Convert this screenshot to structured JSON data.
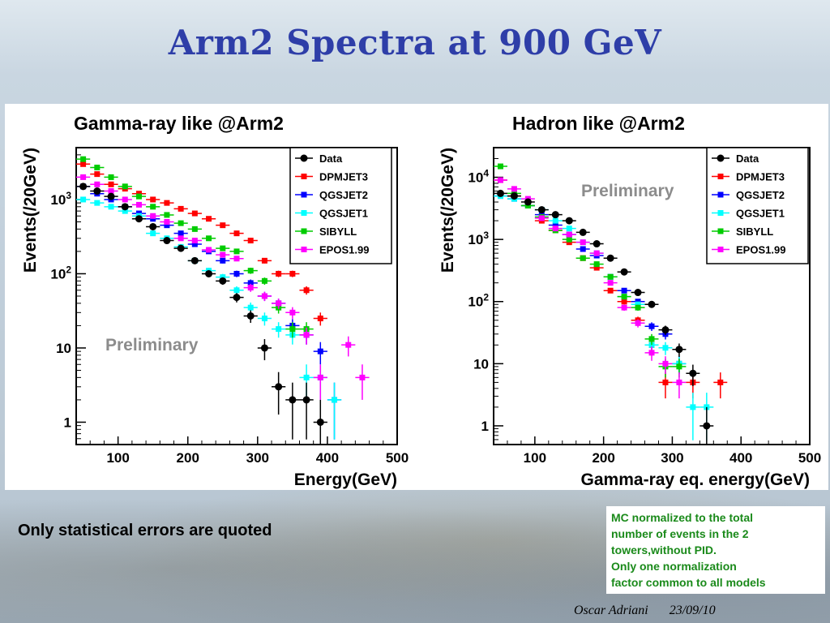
{
  "slide": {
    "title": "Arm2 Spectra at 900 GeV",
    "note_left": "Only statistical errors are quoted",
    "note_right": [
      "MC normalized to the total",
      "number of events in the 2",
      "towers,without PID.",
      "Only one normalization",
      "factor common to all models"
    ],
    "footer_author": "Oscar Adriani",
    "footer_date": "23/09/10"
  },
  "colors": {
    "title": "#2e3ea8",
    "Data": "#000000",
    "DPMJET3": "#ff0000",
    "QGSJET2": "#0000ff",
    "QGSJET1": "#00ffff",
    "SIBYLL": "#00cc00",
    "EPOS1.99": "#ff00ff",
    "note_right_text": "#1a8a1a"
  },
  "chart_data": [
    {
      "type": "scatter",
      "title": "Gamma-ray like @Arm2",
      "xlabel": "Energy(GeV)",
      "ylabel": "Events(/20GeV)",
      "xlim": [
        40,
        500
      ],
      "ylim": [
        0.5,
        5000
      ],
      "yscale": "log",
      "xticks": [
        "100",
        "200",
        "300",
        "400",
        "500"
      ],
      "yticks": [
        {
          "v": 1,
          "label": "1"
        },
        {
          "v": 10,
          "label": "10"
        },
        {
          "v": 100,
          "label": "10^2"
        },
        {
          "v": 1000,
          "label": "10^3"
        }
      ],
      "annotation": "Preliminary",
      "legend_position": "top-right",
      "series": [
        {
          "name": "Data",
          "x": [
            50,
            70,
            90,
            110,
            130,
            150,
            170,
            190,
            210,
            230,
            250,
            270,
            290,
            310,
            330,
            350,
            370,
            390
          ],
          "y": [
            1500,
            1300,
            1100,
            800,
            550,
            430,
            280,
            220,
            150,
            100,
            80,
            48,
            27,
            10,
            3,
            2,
            2,
            1
          ]
        },
        {
          "name": "DPMJET3",
          "x": [
            50,
            70,
            90,
            110,
            130,
            150,
            170,
            190,
            210,
            230,
            250,
            270,
            290,
            310,
            330,
            350,
            370,
            390
          ],
          "y": [
            3000,
            2200,
            1600,
            1400,
            1200,
            1000,
            900,
            750,
            650,
            550,
            450,
            350,
            280,
            150,
            100,
            100,
            60,
            25
          ]
        },
        {
          "name": "QGSJET2",
          "x": [
            50,
            70,
            90,
            110,
            130,
            150,
            170,
            190,
            210,
            230,
            250,
            270,
            290,
            310,
            330,
            350,
            370,
            390,
            410
          ],
          "y": [
            1500,
            1200,
            1000,
            800,
            650,
            550,
            450,
            350,
            250,
            200,
            150,
            100,
            75,
            50,
            40,
            20,
            15,
            9,
            2
          ]
        },
        {
          "name": "QGSJET1",
          "x": [
            50,
            70,
            90,
            110,
            130,
            150,
            170,
            190,
            210,
            230,
            250,
            270,
            290,
            310,
            330,
            350,
            370,
            390,
            410
          ],
          "y": [
            1000,
            900,
            800,
            700,
            600,
            350,
            300,
            230,
            150,
            110,
            90,
            60,
            35,
            25,
            18,
            15,
            4,
            4,
            2
          ]
        },
        {
          "name": "SIBYLL",
          "x": [
            50,
            70,
            90,
            110,
            130,
            150,
            170,
            190,
            210,
            230,
            250,
            270,
            290,
            310,
            330,
            350,
            370
          ],
          "y": [
            3500,
            2700,
            2000,
            1500,
            1100,
            800,
            620,
            480,
            400,
            300,
            220,
            200,
            110,
            80,
            35,
            18,
            18
          ]
        },
        {
          "name": "EPOS1.99",
          "x": [
            50,
            70,
            90,
            110,
            130,
            150,
            170,
            190,
            210,
            230,
            250,
            270,
            290,
            310,
            330,
            350,
            370,
            390,
            430,
            450
          ],
          "y": [
            2000,
            1600,
            1300,
            1000,
            850,
            600,
            500,
            300,
            280,
            210,
            180,
            160,
            65,
            50,
            40,
            30,
            15,
            4,
            11,
            4
          ]
        }
      ]
    },
    {
      "type": "scatter",
      "title": "Hadron like @Arm2",
      "xlabel": "Gamma-ray eq. energy(GeV)",
      "ylabel": "Events(/20GeV)",
      "xlim": [
        40,
        500
      ],
      "ylim": [
        0.5,
        30000
      ],
      "yscale": "log",
      "xticks": [
        "100",
        "200",
        "300",
        "400",
        "500"
      ],
      "yticks": [
        {
          "v": 1,
          "label": "1"
        },
        {
          "v": 10,
          "label": "10"
        },
        {
          "v": 100,
          "label": "10^2"
        },
        {
          "v": 1000,
          "label": "10^3"
        },
        {
          "v": 10000,
          "label": "10^4"
        }
      ],
      "annotation": "Preliminary",
      "legend_position": "top-right",
      "series": [
        {
          "name": "Data",
          "x": [
            50,
            70,
            90,
            110,
            130,
            150,
            170,
            190,
            210,
            230,
            250,
            270,
            290,
            310,
            330,
            350
          ],
          "y": [
            5500,
            5000,
            4000,
            3000,
            2500,
            2000,
            1300,
            850,
            500,
            300,
            140,
            90,
            35,
            17,
            7,
            1
          ]
        },
        {
          "name": "DPMJET3",
          "x": [
            50,
            70,
            90,
            110,
            130,
            150,
            170,
            190,
            210,
            230,
            250,
            270,
            290,
            330,
            370
          ],
          "y": [
            9000,
            5000,
            3500,
            2000,
            1400,
            900,
            500,
            350,
            150,
            100,
            50,
            20,
            5,
            5,
            5
          ]
        },
        {
          "name": "QGSJET2",
          "x": [
            50,
            70,
            90,
            110,
            130,
            150,
            170,
            190,
            210,
            230,
            250,
            270,
            290,
            310
          ],
          "y": [
            5000,
            4500,
            3500,
            2500,
            1700,
            1200,
            700,
            550,
            250,
            150,
            100,
            40,
            30,
            10
          ]
        },
        {
          "name": "QGSJET1",
          "x": [
            50,
            70,
            90,
            110,
            130,
            150,
            170,
            190,
            210,
            230,
            250,
            270,
            290,
            310,
            330,
            350
          ],
          "y": [
            5000,
            4500,
            3500,
            3000,
            2000,
            1500,
            900,
            600,
            250,
            120,
            90,
            20,
            18,
            10,
            2,
            2
          ]
        },
        {
          "name": "SIBYLL",
          "x": [
            50,
            70,
            90,
            110,
            130,
            150,
            170,
            190,
            210,
            230,
            250,
            270,
            290,
            310
          ],
          "y": [
            15000,
            5500,
            3500,
            2300,
            1400,
            1000,
            500,
            400,
            250,
            120,
            80,
            25,
            9,
            9
          ]
        },
        {
          "name": "EPOS1.99",
          "x": [
            50,
            70,
            90,
            110,
            130,
            150,
            170,
            190,
            210,
            230,
            250,
            270,
            290,
            310
          ],
          "y": [
            9000,
            6500,
            4500,
            2200,
            1500,
            1200,
            900,
            600,
            200,
            80,
            45,
            15,
            10,
            5
          ]
        }
      ]
    }
  ]
}
